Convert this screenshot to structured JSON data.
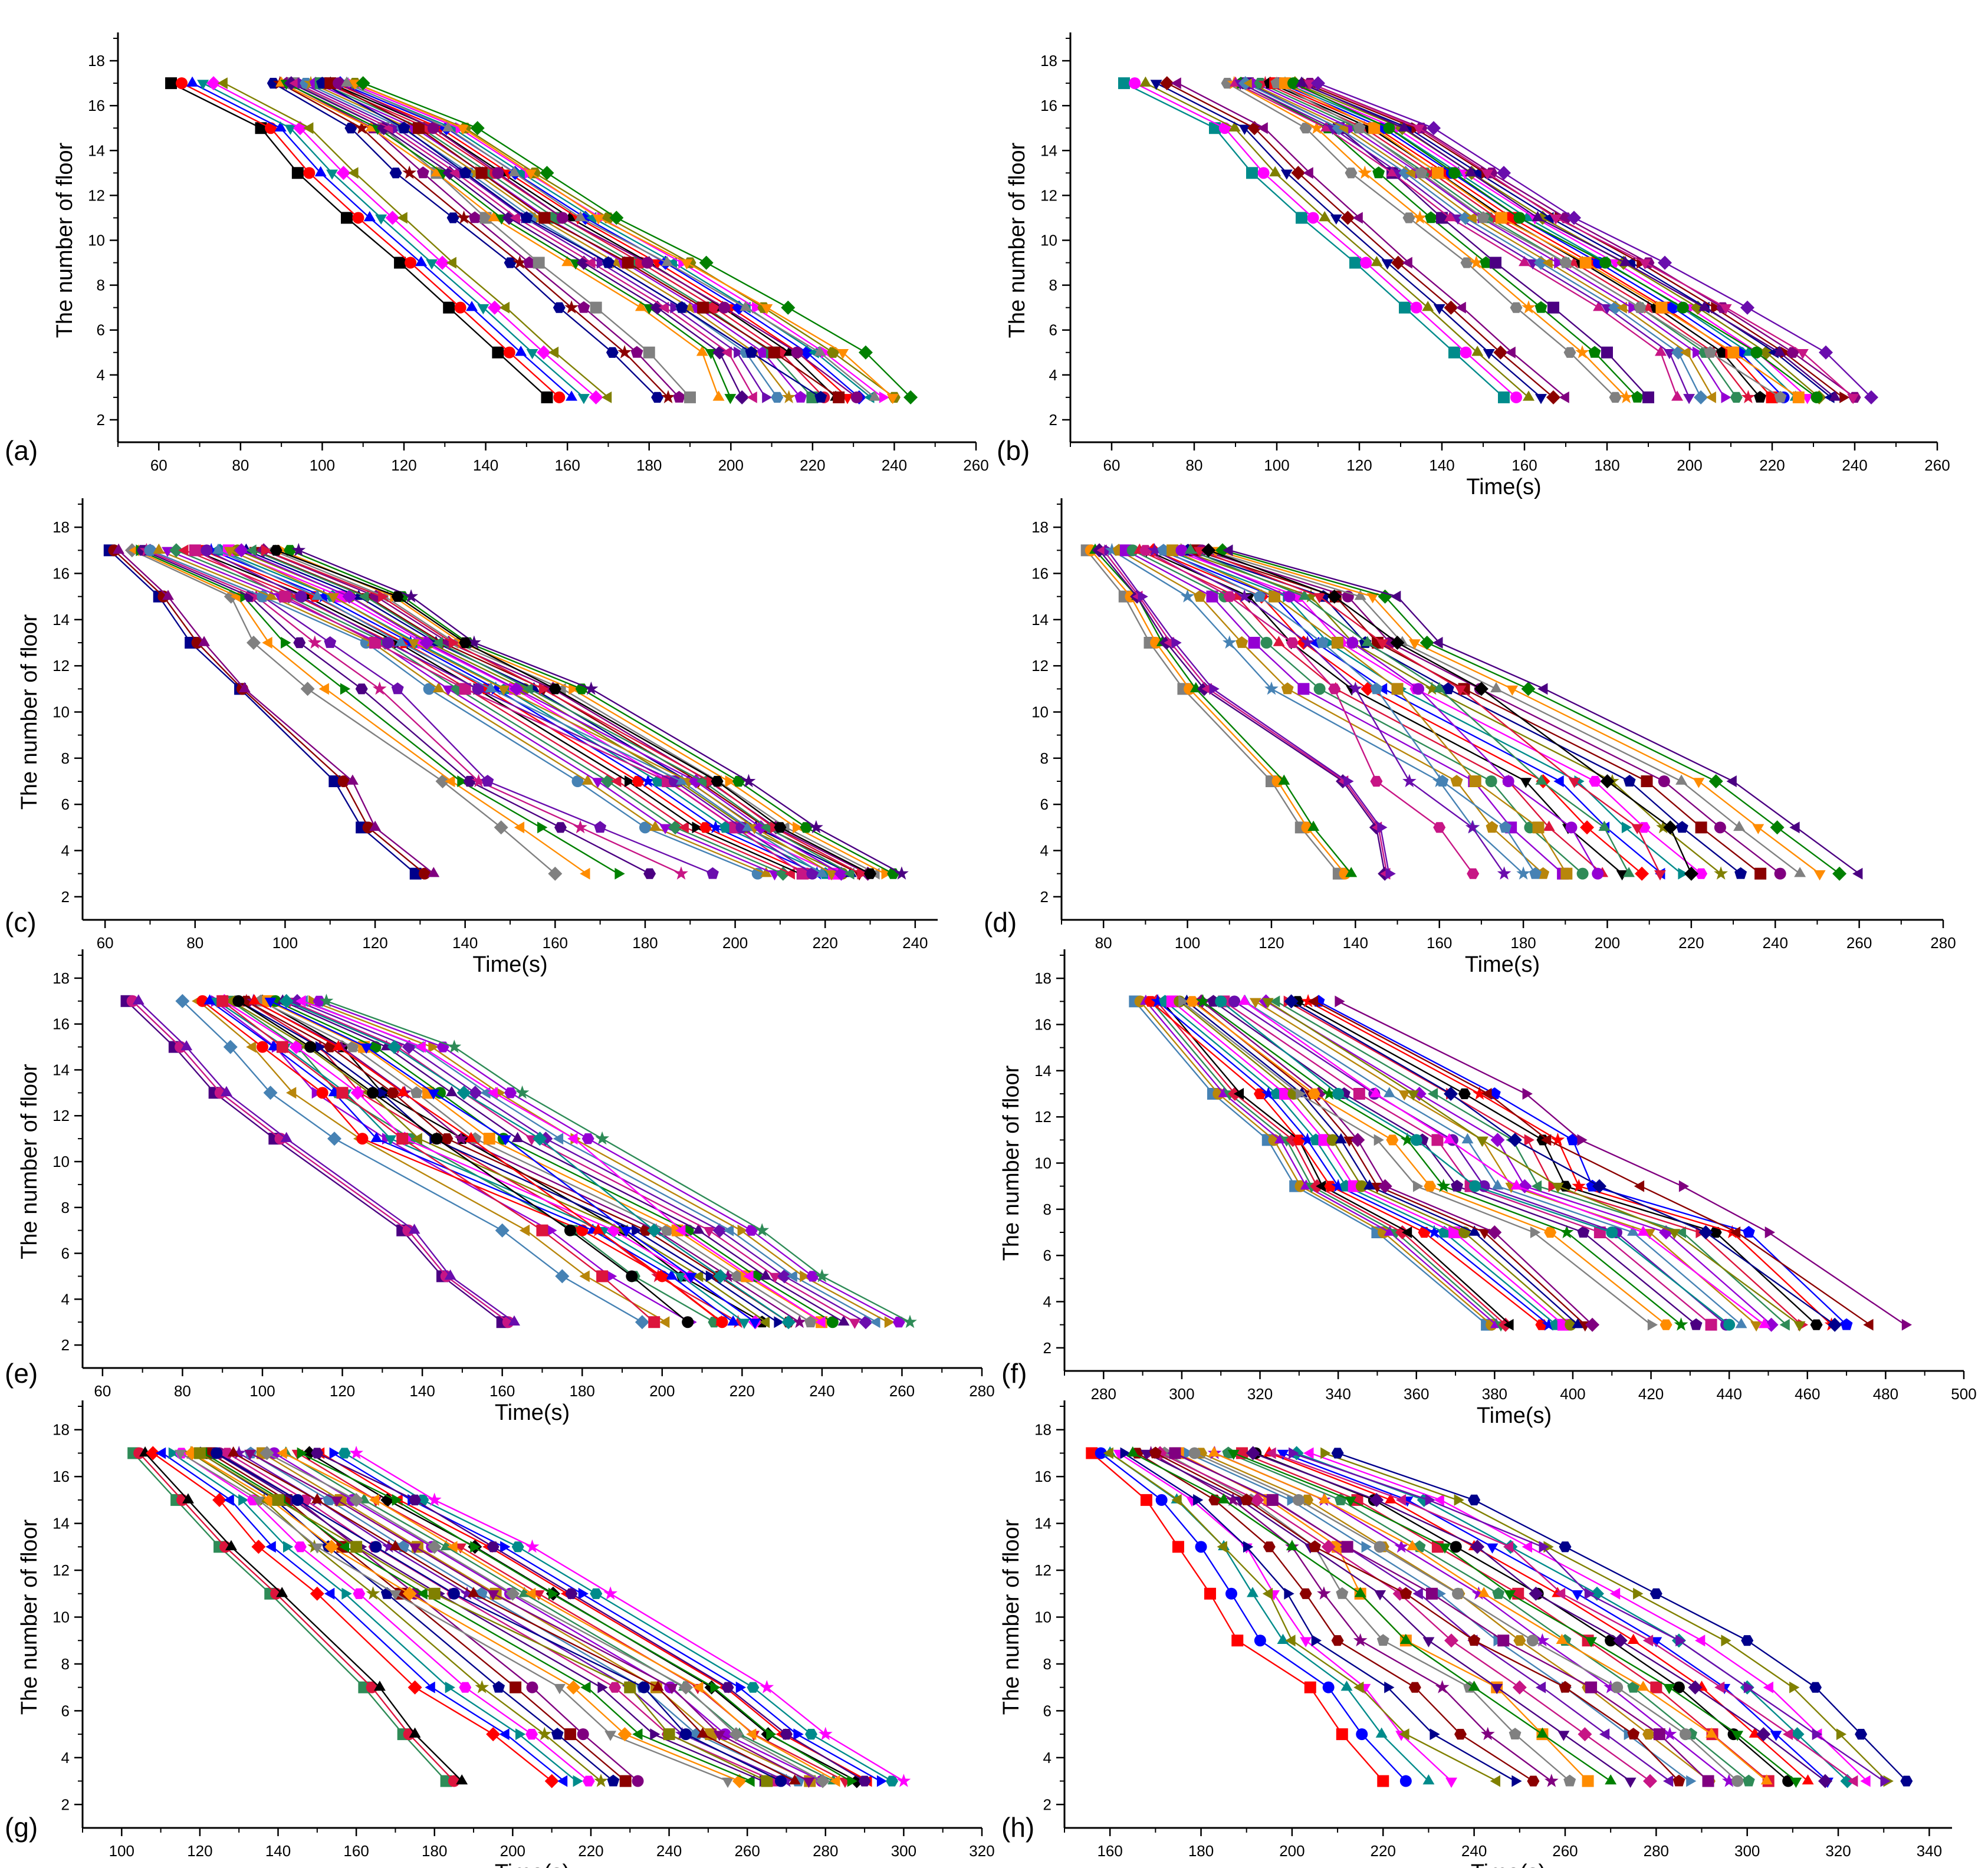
{
  "colors": [
    "#000000",
    "#ff0000",
    "#0000ff",
    "#008b8b",
    "#ff00ff",
    "#808000",
    "#00008b",
    "#8b0000",
    "#800080",
    "#808080",
    "#ff8c00",
    "#008000",
    "#4b0082",
    "#c71585",
    "#6a0dad",
    "#4682b4",
    "#b8860b",
    "#9400d3",
    "#2e8b57",
    "#dc143c"
  ],
  "marker_shapes": [
    "square",
    "circle",
    "triangle-up",
    "triangle-down",
    "diamond",
    "triangle-left",
    "triangle-right",
    "hexagon",
    "star",
    "pentagon"
  ],
  "chart_data": [
    {
      "id": "a",
      "label": "(a)",
      "type": "line",
      "xlabel": "",
      "ylabel": "The number of floor",
      "xlim": [
        50,
        260
      ],
      "xticks": [
        60,
        80,
        100,
        120,
        140,
        160,
        180,
        200,
        220,
        240,
        260
      ],
      "ylim": [
        1,
        19
      ],
      "yticks": [
        2,
        4,
        6,
        8,
        10,
        12,
        14,
        16,
        18
      ],
      "floors": [
        17,
        15,
        13,
        11,
        9,
        7,
        5,
        3
      ],
      "groups": [
        {
          "count": 6,
          "x_first": [
            63,
            85,
            94,
            106,
            119,
            131,
            143,
            155
          ],
          "x_last": [
            76,
            97,
            108,
            120,
            132,
            145,
            157,
            170
          ]
        },
        {
          "count": 4,
          "x_first": [
            88,
            107,
            118,
            132,
            146,
            158,
            171,
            182
          ],
          "x_last": [
            93,
            115,
            128,
            140,
            153,
            167,
            180,
            190
          ]
        },
        {
          "count": 16,
          "x_first": [
            90,
            112,
            128,
            142,
            160,
            178,
            193,
            197
          ],
          "x_last": [
            108,
            135,
            152,
            170,
            190,
            208,
            225,
            240
          ]
        },
        {
          "count": 6,
          "x_first": [
            100,
            120,
            135,
            150,
            170,
            188,
            205,
            222
          ],
          "x_last": [
            110,
            138,
            155,
            172,
            194,
            214,
            233,
            244
          ]
        }
      ]
    },
    {
      "id": "b",
      "label": "(b)",
      "type": "line",
      "xlabel": "Time(s)",
      "ylabel": "The number of floor",
      "xlim": [
        50,
        260
      ],
      "xticks": [
        60,
        80,
        100,
        120,
        140,
        160,
        180,
        200,
        220,
        240,
        260
      ],
      "ylim": [
        1,
        19
      ],
      "yticks": [
        2,
        4,
        6,
        8,
        10,
        12,
        14,
        16,
        18
      ],
      "floors": [
        17,
        15,
        13,
        11,
        9,
        7,
        5,
        3
      ],
      "groups": [
        {
          "count": 6,
          "x_first": [
            63,
            85,
            94,
            106,
            119,
            131,
            143,
            155
          ],
          "x_last": [
            76,
            97,
            108,
            120,
            132,
            145,
            157,
            170
          ]
        },
        {
          "count": 4,
          "x_first": [
            88,
            107,
            118,
            132,
            146,
            158,
            171,
            182
          ],
          "x_last": [
            93,
            115,
            128,
            140,
            153,
            167,
            180,
            190
          ]
        },
        {
          "count": 16,
          "x_first": [
            90,
            112,
            128,
            142,
            160,
            178,
            193,
            197
          ],
          "x_last": [
            108,
            135,
            152,
            170,
            190,
            208,
            225,
            240
          ]
        },
        {
          "count": 6,
          "x_first": [
            100,
            120,
            135,
            150,
            170,
            188,
            205,
            222
          ],
          "x_last": [
            110,
            138,
            155,
            172,
            194,
            214,
            233,
            244
          ]
        }
      ]
    },
    {
      "id": "c",
      "label": "(c)",
      "type": "line",
      "xlabel": "Time(s)",
      "ylabel": "The number of floor",
      "xlim": [
        55,
        245
      ],
      "xticks": [
        60,
        80,
        100,
        120,
        140,
        160,
        180,
        200,
        220,
        240
      ],
      "ylim": [
        1,
        19
      ],
      "yticks": [
        2,
        4,
        6,
        8,
        10,
        12,
        14,
        16,
        18
      ],
      "floors": [
        17,
        15,
        13,
        11,
        7,
        5,
        3
      ],
      "groups": [
        {
          "count": 3,
          "x_first": [
            61,
            72,
            79,
            90,
            111,
            117,
            129
          ],
          "x_last": [
            63,
            74,
            82,
            91,
            115,
            120,
            133
          ]
        },
        {
          "count": 6,
          "x_first": [
            66,
            88,
            93,
            105,
            135,
            148,
            160
          ],
          "x_last": [
            70,
            95,
            110,
            125,
            145,
            170,
            195
          ]
        },
        {
          "count": 18,
          "x_first": [
            70,
            95,
            118,
            132,
            165,
            180,
            205
          ],
          "x_last": [
            103,
            128,
            142,
            168,
            203,
            218,
            237
          ]
        },
        {
          "count": 8,
          "x_first": [
            80,
            100,
            120,
            140,
            185,
            200,
            215
          ],
          "x_last": [
            98,
            125,
            140,
            160,
            196,
            210,
            230
          ]
        }
      ]
    },
    {
      "id": "d",
      "label": "(d)",
      "type": "line",
      "xlabel": "Time(s)",
      "ylabel": "",
      "xlim": [
        70,
        280
      ],
      "xticks": [
        80,
        100,
        120,
        140,
        160,
        180,
        200,
        220,
        240,
        260,
        280
      ],
      "ylim": [
        1,
        19
      ],
      "yticks": [
        2,
        4,
        6,
        8,
        10,
        12,
        14,
        16,
        18
      ],
      "floors": [
        17,
        15,
        13,
        11,
        7,
        5,
        3
      ],
      "groups": [
        {
          "count": 3,
          "x_first": [
            76,
            85,
            91,
            99,
            120,
            127,
            136
          ],
          "x_last": [
            78,
            88,
            94,
            102,
            123,
            130,
            139
          ]
        },
        {
          "count": 3,
          "x_first": [
            79,
            88,
            95,
            104,
            137,
            145,
            147
          ],
          "x_last": [
            81,
            89,
            97,
            106,
            138,
            146,
            148
          ]
        },
        {
          "count": 18,
          "x_first": [
            82,
            100,
            110,
            120,
            160,
            168,
            180
          ],
          "x_last": [
            110,
            150,
            160,
            185,
            230,
            245,
            260
          ]
        },
        {
          "count": 8,
          "x_first": [
            90,
            110,
            125,
            135,
            145,
            160,
            168
          ],
          "x_last": [
            105,
            135,
            150,
            170,
            200,
            215,
            220
          ]
        }
      ]
    },
    {
      "id": "e",
      "label": "(e)",
      "type": "line",
      "xlabel": "Time(s)",
      "ylabel": "The number of floor",
      "xlim": [
        55,
        280
      ],
      "xticks": [
        60,
        80,
        100,
        120,
        140,
        160,
        180,
        200,
        220,
        240,
        260,
        280
      ],
      "ylim": [
        1,
        19
      ],
      "yticks": [
        2,
        4,
        6,
        8,
        10,
        12,
        14,
        16,
        18
      ],
      "floors": [
        17,
        15,
        13,
        11,
        7,
        5,
        3
      ],
      "groups": [
        {
          "count": 3,
          "x_first": [
            66,
            78,
            88,
            103,
            135,
            145,
            160
          ],
          "x_last": [
            69,
            81,
            91,
            106,
            138,
            147,
            163
          ]
        },
        {
          "count": 6,
          "x_first": [
            80,
            92,
            102,
            118,
            160,
            175,
            195
          ],
          "x_last": [
            100,
            120,
            130,
            150,
            190,
            205,
            225
          ]
        },
        {
          "count": 18,
          "x_first": [
            85,
            100,
            115,
            125,
            180,
            200,
            215
          ],
          "x_last": [
            116,
            148,
            165,
            185,
            225,
            240,
            262
          ]
        },
        {
          "count": 6,
          "x_first": [
            90,
            105,
            120,
            135,
            170,
            185,
            198
          ],
          "x_last": [
            110,
            140,
            158,
            178,
            205,
            222,
            240
          ]
        }
      ]
    },
    {
      "id": "f",
      "label": "(f)",
      "type": "line",
      "xlabel": "Time(s)",
      "ylabel": "The number of floor",
      "xlim": [
        270,
        500
      ],
      "xticks": [
        280,
        300,
        320,
        340,
        360,
        380,
        400,
        420,
        440,
        460,
        480,
        500
      ],
      "ylim": [
        1,
        19
      ],
      "yticks": [
        2,
        4,
        6,
        8,
        10,
        12,
        14,
        16,
        18
      ],
      "floors": [
        17,
        13,
        11,
        9,
        7,
        3
      ],
      "groups": [
        {
          "count": 6,
          "x_first": [
            288,
            308,
            322,
            329,
            350,
            378
          ],
          "x_last": [
            295,
            315,
            330,
            336,
            358,
            384
          ]
        },
        {
          "count": 8,
          "x_first": [
            292,
            320,
            330,
            338,
            362,
            392
          ],
          "x_last": [
            305,
            335,
            345,
            352,
            380,
            405
          ]
        },
        {
          "count": 14,
          "x_first": [
            300,
            330,
            350,
            360,
            390,
            420
          ],
          "x_last": [
            335,
            380,
            400,
            405,
            445,
            470
          ]
        },
        {
          "count": 6,
          "x_first": [
            310,
            340,
            360,
            375,
            410,
            440
          ],
          "x_last": [
            340,
            388,
            402,
            428,
            450,
            485
          ]
        }
      ]
    },
    {
      "id": "g",
      "label": "(g)",
      "type": "line",
      "xlabel": "Time(s)",
      "ylabel": "The number of floor",
      "xlim": [
        90,
        320
      ],
      "xticks": [
        100,
        120,
        140,
        160,
        180,
        200,
        220,
        240,
        260,
        280,
        300,
        320
      ],
      "ylim": [
        1,
        19
      ],
      "yticks": [
        2,
        4,
        6,
        8,
        10,
        12,
        14,
        16,
        18
      ],
      "floors": [
        17,
        15,
        13,
        11,
        7,
        5,
        3
      ],
      "groups": [
        {
          "count": 3,
          "x_first": [
            103,
            114,
            125,
            138,
            162,
            172,
            183
          ],
          "x_last": [
            106,
            117,
            128,
            141,
            166,
            175,
            187
          ]
        },
        {
          "count": 8,
          "x_first": [
            108,
            125,
            135,
            150,
            175,
            195,
            210
          ],
          "x_last": [
            125,
            145,
            160,
            175,
            205,
            218,
            232
          ]
        },
        {
          "count": 16,
          "x_first": [
            115,
            135,
            150,
            170,
            212,
            225,
            255
          ],
          "x_last": [
            160,
            180,
            205,
            225,
            265,
            280,
            300
          ]
        },
        {
          "count": 8,
          "x_first": [
            120,
            140,
            160,
            180,
            230,
            240,
            265
          ],
          "x_last": [
            150,
            175,
            195,
            215,
            255,
            270,
            290
          ]
        }
      ]
    },
    {
      "id": "h",
      "label": "(h)",
      "type": "line",
      "xlabel": "Time(s)",
      "ylabel": "The number of floor",
      "xlim": [
        150,
        345
      ],
      "xticks": [
        160,
        180,
        200,
        220,
        240,
        260,
        280,
        300,
        320,
        340
      ],
      "ylim": [
        1,
        19
      ],
      "yticks": [
        2,
        4,
        6,
        8,
        10,
        12,
        14,
        16,
        18
      ],
      "floors": [
        17,
        15,
        13,
        11,
        9,
        7,
        5,
        3
      ],
      "groups": [
        {
          "count": 4,
          "x_first": [
            156,
            168,
            175,
            182,
            188,
            204,
            211,
            220
          ],
          "x_last": [
            162,
            178,
            190,
            196,
            203,
            216,
            224,
            235
          ]
        },
        {
          "count": 6,
          "x_first": [
            160,
            175,
            185,
            195,
            200,
            215,
            225,
            245
          ],
          "x_last": [
            175,
            195,
            210,
            215,
            225,
            245,
            255,
            265
          ]
        },
        {
          "count": 16,
          "x_first": [
            165,
            185,
            200,
            215,
            225,
            240,
            255,
            270
          ],
          "x_last": [
            210,
            240,
            260,
            280,
            300,
            315,
            325,
            335
          ]
        },
        {
          "count": 8,
          "x_first": [
            170,
            190,
            205,
            225,
            240,
            260,
            275,
            285
          ],
          "x_last": [
            200,
            230,
            255,
            265,
            285,
            300,
            315,
            330
          ]
        }
      ]
    }
  ]
}
